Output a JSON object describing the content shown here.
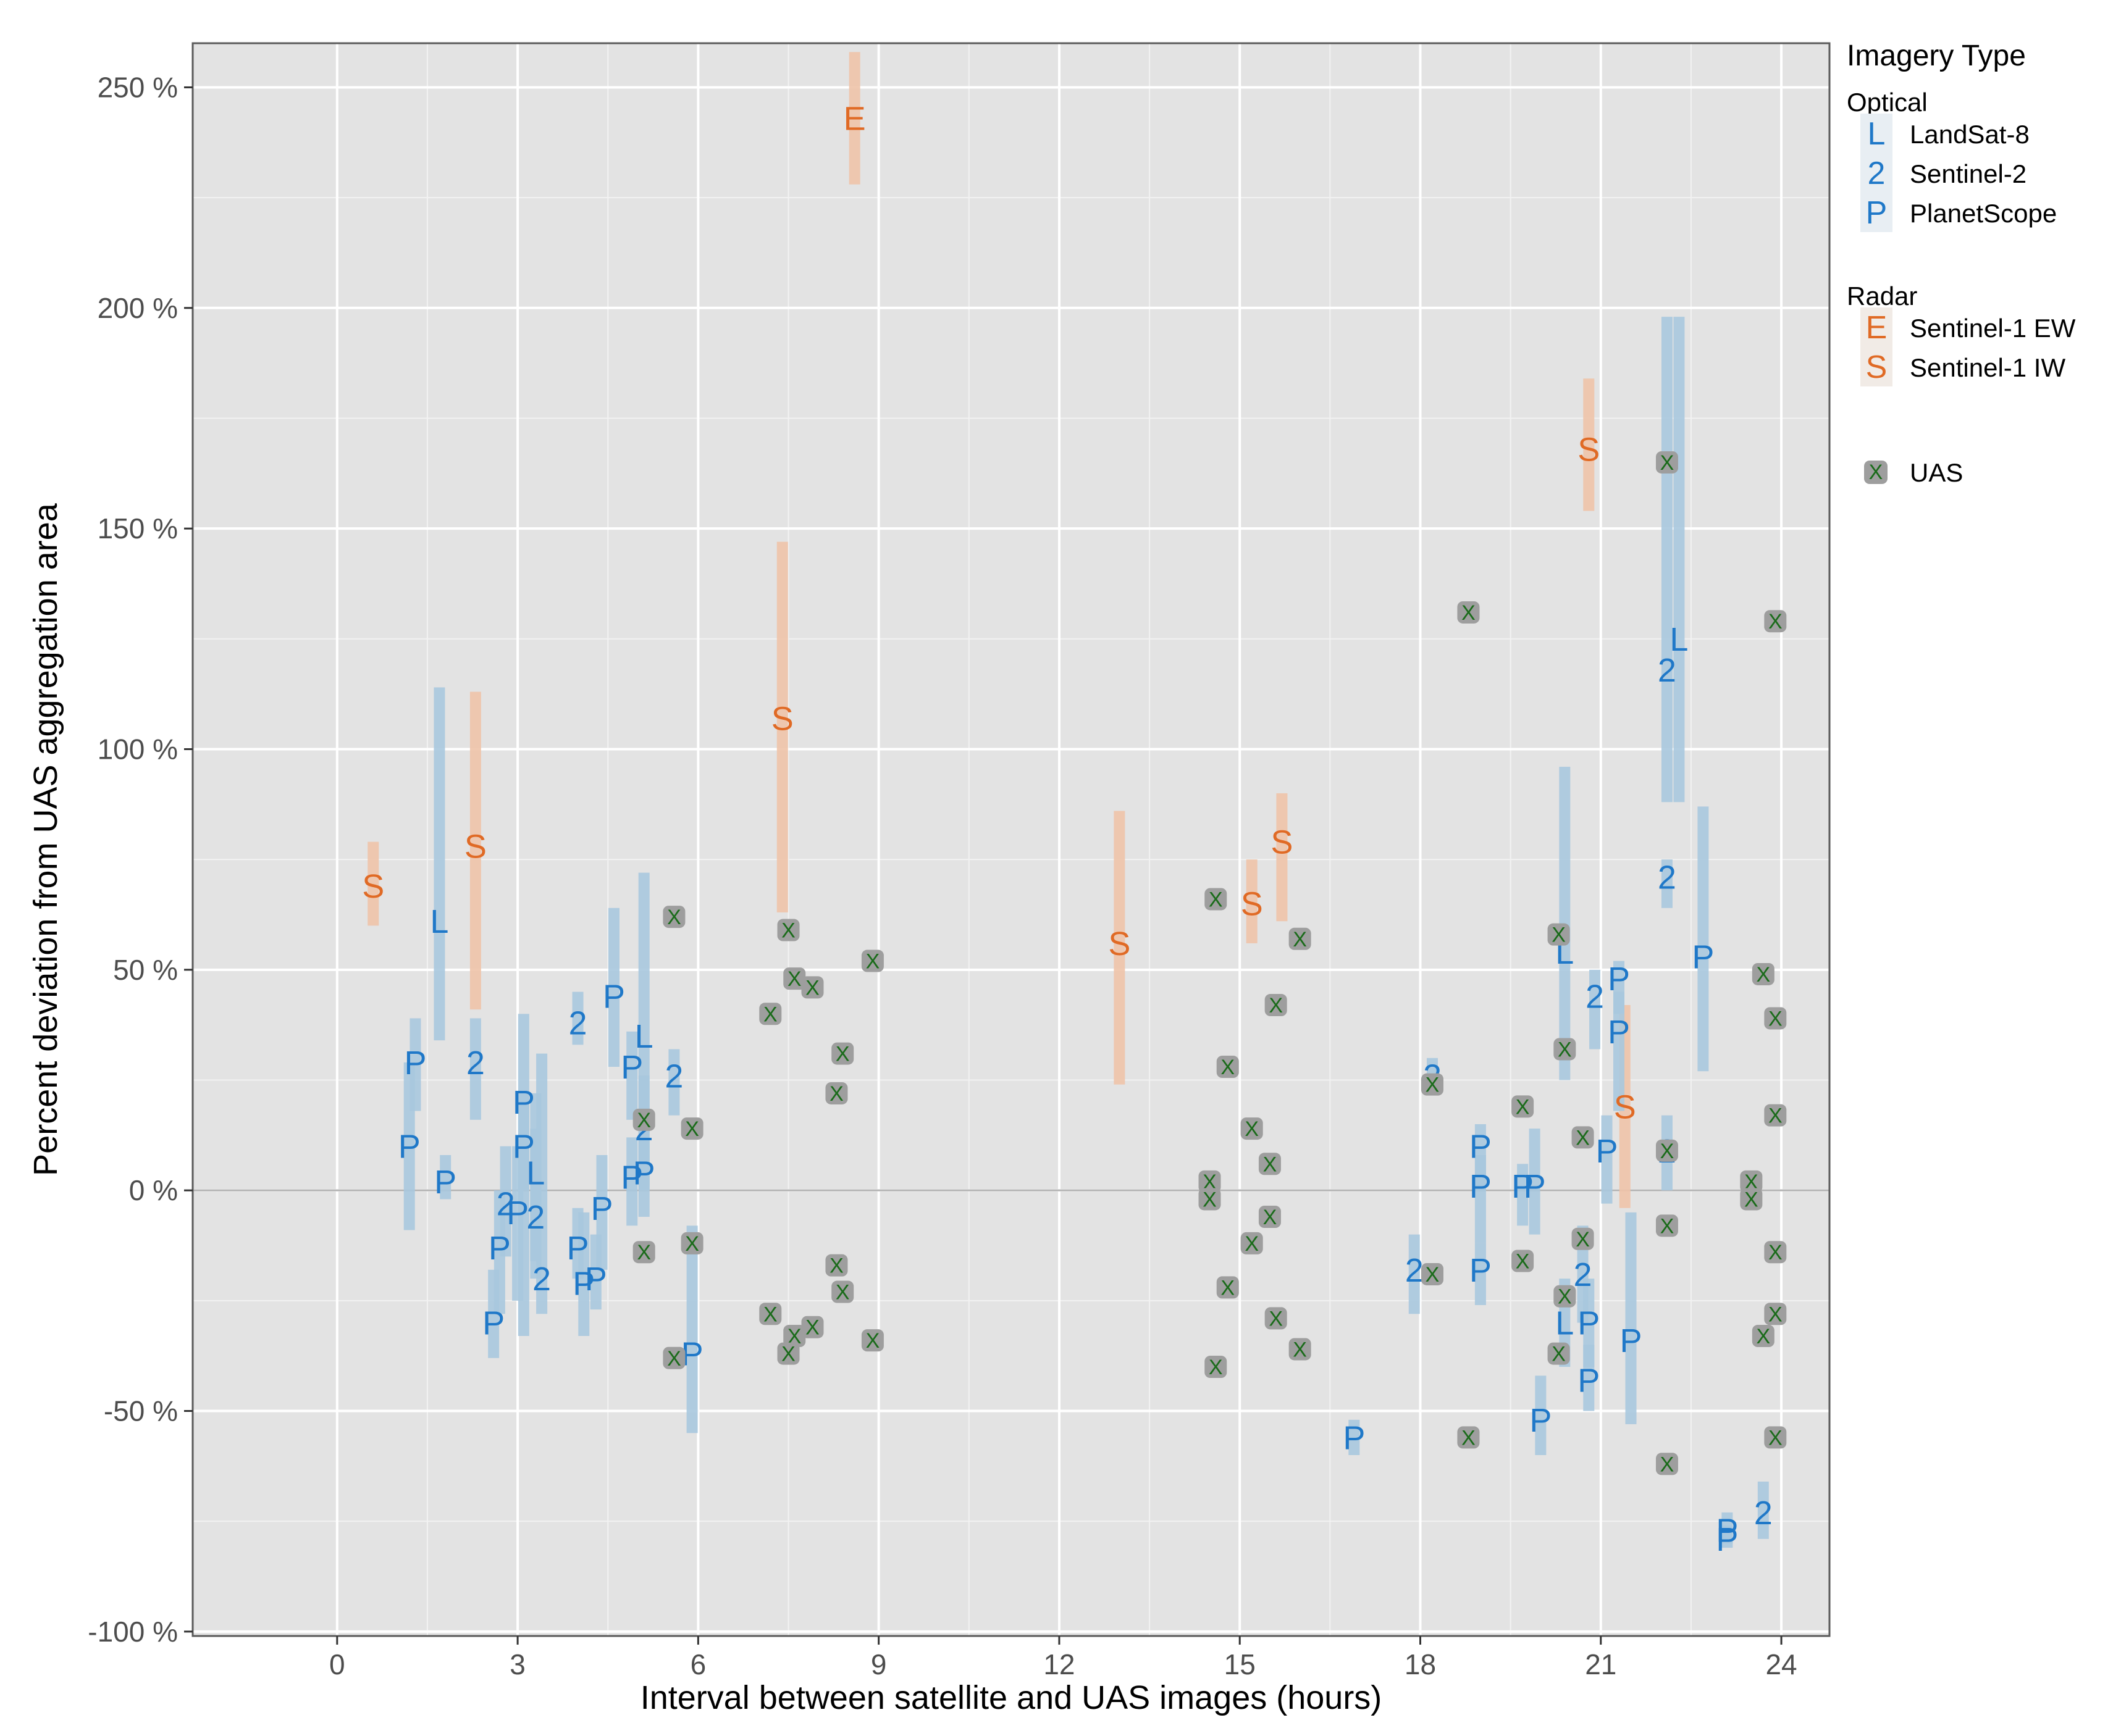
{
  "chart_data": {
    "type": "scatter",
    "xlabel": "Interval between satellite and UAS images (hours)",
    "ylabel": "Percent deviation from UAS aggregation area",
    "xlim": [
      -2.4,
      24.8
    ],
    "ylim": [
      -101,
      260
    ],
    "x_ticks": [
      0,
      3,
      6,
      9,
      12,
      15,
      18,
      21,
      24
    ],
    "x_tick_labels": [
      "0",
      "3",
      "6",
      "9",
      "12",
      "15",
      "18",
      "21",
      "24"
    ],
    "y_ticks": [
      -100,
      -50,
      0,
      50,
      100,
      150,
      200,
      250
    ],
    "y_tick_labels": [
      "-100 %",
      "-50 %",
      "0 %",
      "50 %",
      "100 %",
      "150 %",
      "200 %",
      "250 %"
    ],
    "reference_line_y": 0,
    "legend": {
      "title": "Imagery Type",
      "groups": [
        {
          "name": "Optical",
          "items": [
            {
              "symbol": "L",
              "label": "LandSat-8",
              "color": "#1f78c8"
            },
            {
              "symbol": "2",
              "label": "Sentinel-2",
              "color": "#1f78c8"
            },
            {
              "symbol": "P",
              "label": "PlanetScope",
              "color": "#1f78c8"
            }
          ]
        },
        {
          "name": "Radar",
          "items": [
            {
              "symbol": "E",
              "label": "Sentinel-1 EW",
              "color": "#e06a25"
            },
            {
              "symbol": "S",
              "label": "Sentinel-1 IW",
              "color": "#e06a25"
            }
          ]
        },
        {
          "name": "",
          "items": [
            {
              "symbol": "X",
              "label": "UAS",
              "color": "#1a6b1a"
            }
          ]
        }
      ]
    },
    "colors": {
      "optical": "#1f78c8",
      "optical_range": "#a8c8de",
      "radar": "#e06a25",
      "radar_range": "#eec3a8",
      "uas_fill": "#9e9e9e",
      "uas_x": "#1a6b1a",
      "panel": "#e3e3e3"
    },
    "series": [
      {
        "name": "Sentinel-1 EW",
        "group": "Radar",
        "symbol": "E",
        "points": [
          {
            "x": 8.6,
            "y": 243,
            "lo": 228,
            "hi": 258
          }
        ]
      },
      {
        "name": "Sentinel-1 IW",
        "group": "Radar",
        "symbol": "S",
        "points": [
          {
            "x": 0.6,
            "y": 69,
            "lo": 60,
            "hi": 79
          },
          {
            "x": 2.3,
            "y": 78,
            "lo": 41,
            "hi": 113
          },
          {
            "x": 7.4,
            "y": 107,
            "lo": 63,
            "hi": 147
          },
          {
            "x": 13.0,
            "y": 56,
            "lo": 24,
            "hi": 86
          },
          {
            "x": 15.2,
            "y": 65,
            "lo": 56,
            "hi": 75
          },
          {
            "x": 15.7,
            "y": 79,
            "lo": 61,
            "hi": 90
          },
          {
            "x": 20.8,
            "y": 168,
            "lo": 154,
            "hi": 184
          },
          {
            "x": 21.4,
            "y": 19,
            "lo": -4,
            "hi": 42
          }
        ]
      },
      {
        "name": "LandSat-8",
        "group": "Optical",
        "symbol": "L",
        "points": [
          {
            "x": 1.7,
            "y": 61,
            "lo": 34,
            "hi": 114
          },
          {
            "x": 3.3,
            "y": 4,
            "lo": -16,
            "hi": 22
          },
          {
            "x": 5.1,
            "y": 35,
            "lo": 0,
            "hi": 72
          },
          {
            "x": 20.4,
            "y": 54,
            "lo": 25,
            "hi": 96
          },
          {
            "x": 22.3,
            "y": 125,
            "lo": 88,
            "hi": 198
          },
          {
            "x": 20.4,
            "y": -30,
            "lo": -40,
            "hi": -20
          }
        ]
      },
      {
        "name": "Sentinel-2",
        "group": "Optical",
        "symbol": "2",
        "points": [
          {
            "x": 2.3,
            "y": 29,
            "lo": 16,
            "hi": 39
          },
          {
            "x": 2.8,
            "y": -3,
            "lo": -15,
            "hi": 10
          },
          {
            "x": 3.3,
            "y": -6,
            "lo": -20,
            "hi": 14
          },
          {
            "x": 3.4,
            "y": -20,
            "lo": -28,
            "hi": 31
          },
          {
            "x": 4.0,
            "y": 38,
            "lo": 33,
            "hi": 45
          },
          {
            "x": 5.1,
            "y": 14,
            "lo": 1,
            "hi": 26
          },
          {
            "x": 5.6,
            "y": 26,
            "lo": 17,
            "hi": 32
          },
          {
            "x": 18.2,
            "y": 26,
            "lo": 22,
            "hi": 30
          },
          {
            "x": 17.9,
            "y": -18,
            "lo": -28,
            "hi": -10
          },
          {
            "x": 20.7,
            "y": -19,
            "lo": -30,
            "hi": -8
          },
          {
            "x": 20.9,
            "y": 44,
            "lo": 32,
            "hi": 50
          },
          {
            "x": 22.1,
            "y": 71,
            "lo": 64,
            "hi": 75
          },
          {
            "x": 22.1,
            "y": 118,
            "lo": 88,
            "hi": 198
          },
          {
            "x": 22.1,
            "y": 9,
            "lo": 0,
            "hi": 17
          },
          {
            "x": 23.7,
            "y": -73,
            "lo": -79,
            "hi": -66
          }
        ]
      },
      {
        "name": "PlanetScope",
        "group": "Optical",
        "symbol": "P",
        "points": [
          {
            "x": 1.3,
            "y": 29,
            "lo": 18,
            "hi": 39
          },
          {
            "x": 1.2,
            "y": 10,
            "lo": -9,
            "hi": 29
          },
          {
            "x": 1.8,
            "y": 2,
            "lo": -2,
            "hi": 8
          },
          {
            "x": 2.7,
            "y": -13,
            "lo": -28,
            "hi": 0
          },
          {
            "x": 2.6,
            "y": -30,
            "lo": -38,
            "hi": -18
          },
          {
            "x": 3.1,
            "y": 20,
            "lo": 0,
            "hi": 40
          },
          {
            "x": 3.1,
            "y": 10,
            "lo": -33,
            "hi": 22
          },
          {
            "x": 3.0,
            "y": -5,
            "lo": -25,
            "hi": 10
          },
          {
            "x": 4.0,
            "y": -13,
            "lo": -20,
            "hi": -4
          },
          {
            "x": 4.1,
            "y": -21,
            "lo": -33,
            "hi": -5
          },
          {
            "x": 4.3,
            "y": -20,
            "lo": -27,
            "hi": -10
          },
          {
            "x": 4.4,
            "y": -4,
            "lo": -18,
            "hi": 8
          },
          {
            "x": 4.6,
            "y": 44,
            "lo": 28,
            "hi": 64
          },
          {
            "x": 4.9,
            "y": 28,
            "lo": 16,
            "hi": 36
          },
          {
            "x": 4.9,
            "y": 3,
            "lo": -8,
            "hi": 12
          },
          {
            "x": 5.1,
            "y": 4,
            "lo": -6,
            "hi": 12
          },
          {
            "x": 5.9,
            "y": -37,
            "lo": -55,
            "hi": -8
          },
          {
            "x": 16.9,
            "y": -56,
            "lo": -60,
            "hi": -52
          },
          {
            "x": 19.0,
            "y": 10,
            "lo": 0,
            "hi": 15
          },
          {
            "x": 19.0,
            "y": 1,
            "lo": -12,
            "hi": 8
          },
          {
            "x": 19.0,
            "y": -18,
            "lo": -26,
            "hi": -12
          },
          {
            "x": 19.7,
            "y": 1,
            "lo": -8,
            "hi": 6
          },
          {
            "x": 19.9,
            "y": 1,
            "lo": -10,
            "hi": 14
          },
          {
            "x": 20.0,
            "y": -52,
            "lo": -60,
            "hi": -42
          },
          {
            "x": 20.8,
            "y": -30,
            "lo": -40,
            "hi": -20
          },
          {
            "x": 20.8,
            "y": -43,
            "lo": -50,
            "hi": -35
          },
          {
            "x": 21.1,
            "y": 9,
            "lo": -3,
            "hi": 17
          },
          {
            "x": 21.3,
            "y": 48,
            "lo": 40,
            "hi": 52
          },
          {
            "x": 21.3,
            "y": 36,
            "lo": 18,
            "hi": 45
          },
          {
            "x": 21.5,
            "y": -34,
            "lo": -53,
            "hi": -5
          },
          {
            "x": 22.7,
            "y": 53,
            "lo": 27,
            "hi": 87
          },
          {
            "x": 23.1,
            "y": -77,
            "lo": -80,
            "hi": -73
          },
          {
            "x": 23.1,
            "y": -79,
            "lo": -81,
            "hi": -76
          }
        ]
      },
      {
        "name": "UAS",
        "group": "",
        "symbol": "X",
        "points": [
          {
            "x": 5.6,
            "y": 62
          },
          {
            "x": 5.1,
            "y": 16
          },
          {
            "x": 5.1,
            "y": -14
          },
          {
            "x": 5.9,
            "y": 14
          },
          {
            "x": 5.9,
            "y": -12
          },
          {
            "x": 5.6,
            "y": -38
          },
          {
            "x": 7.5,
            "y": 59
          },
          {
            "x": 7.6,
            "y": 48
          },
          {
            "x": 7.9,
            "y": 46
          },
          {
            "x": 7.2,
            "y": 40
          },
          {
            "x": 8.4,
            "y": 31
          },
          {
            "x": 8.3,
            "y": 22
          },
          {
            "x": 8.3,
            "y": -17
          },
          {
            "x": 8.4,
            "y": -23
          },
          {
            "x": 7.2,
            "y": -28
          },
          {
            "x": 7.6,
            "y": -33
          },
          {
            "x": 7.9,
            "y": -31
          },
          {
            "x": 7.5,
            "y": -37
          },
          {
            "x": 8.9,
            "y": 52
          },
          {
            "x": 8.9,
            "y": -34
          },
          {
            "x": 14.6,
            "y": 66
          },
          {
            "x": 14.5,
            "y": 2
          },
          {
            "x": 14.5,
            "y": -2
          },
          {
            "x": 14.8,
            "y": 28
          },
          {
            "x": 14.8,
            "y": -22
          },
          {
            "x": 14.6,
            "y": -40
          },
          {
            "x": 15.2,
            "y": 14
          },
          {
            "x": 15.2,
            "y": -12
          },
          {
            "x": 15.6,
            "y": 42
          },
          {
            "x": 15.5,
            "y": 6
          },
          {
            "x": 15.5,
            "y": -6
          },
          {
            "x": 15.6,
            "y": -29
          },
          {
            "x": 16.0,
            "y": 57
          },
          {
            "x": 16.0,
            "y": -36
          },
          {
            "x": 18.8,
            "y": 131
          },
          {
            "x": 18.2,
            "y": 24
          },
          {
            "x": 18.2,
            "y": -19
          },
          {
            "x": 18.8,
            "y": -56
          },
          {
            "x": 19.7,
            "y": 19
          },
          {
            "x": 19.7,
            "y": -16
          },
          {
            "x": 20.3,
            "y": 58
          },
          {
            "x": 20.4,
            "y": 32
          },
          {
            "x": 20.4,
            "y": -24
          },
          {
            "x": 20.3,
            "y": -37
          },
          {
            "x": 20.7,
            "y": 12
          },
          {
            "x": 20.7,
            "y": -11
          },
          {
            "x": 22.1,
            "y": 165
          },
          {
            "x": 22.1,
            "y": 9
          },
          {
            "x": 22.1,
            "y": -8
          },
          {
            "x": 22.1,
            "y": -62
          },
          {
            "x": 23.5,
            "y": 2
          },
          {
            "x": 23.5,
            "y": -2
          },
          {
            "x": 23.7,
            "y": 49
          },
          {
            "x": 23.7,
            "y": -33
          },
          {
            "x": 23.9,
            "y": 129
          },
          {
            "x": 23.9,
            "y": 39
          },
          {
            "x": 23.9,
            "y": 17
          },
          {
            "x": 23.9,
            "y": -14
          },
          {
            "x": 23.9,
            "y": -28
          },
          {
            "x": 23.9,
            "y": -56
          }
        ]
      }
    ]
  }
}
